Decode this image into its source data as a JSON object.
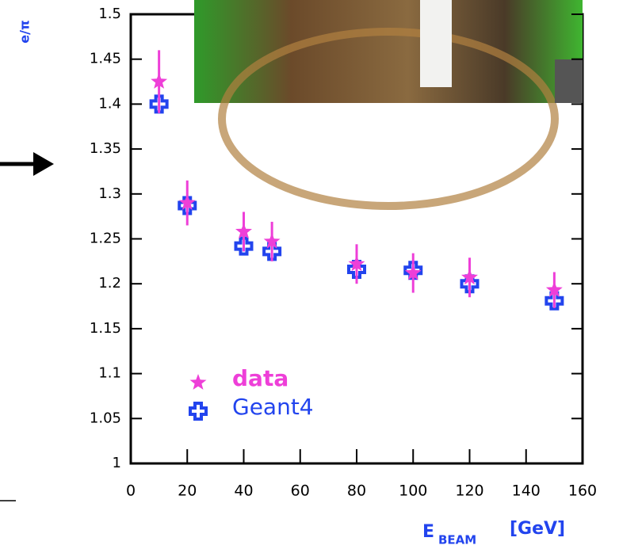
{
  "chart_data": {
    "type": "scatter",
    "y_label": "e/π",
    "x_label": "E",
    "x_label_sub": "BEAM",
    "x_label_unit": "[GeV]",
    "x": [
      10,
      20,
      40,
      50,
      80,
      100,
      120,
      150
    ],
    "series": [
      {
        "name": "data",
        "color": "#ee3fd8",
        "marker": "star",
        "values": [
          1.425,
          1.29,
          1.258,
          1.247,
          1.222,
          1.212,
          1.207,
          1.193
        ],
        "errors": [
          0.035,
          0.025,
          0.022,
          0.022,
          0.022,
          0.022,
          0.022,
          0.02
        ]
      },
      {
        "name": "Geant4",
        "color": "#2244ee",
        "marker": "cross",
        "values": [
          1.4,
          1.287,
          1.242,
          1.236,
          1.216,
          1.215,
          1.2,
          1.181
        ]
      }
    ],
    "xlim": [
      0,
      160
    ],
    "xticks": [
      0,
      20,
      40,
      60,
      80,
      100,
      120,
      140,
      160
    ],
    "ylim": [
      1,
      1.5
    ],
    "yticks": [
      1,
      1.05,
      1.1,
      1.15,
      1.2,
      1.25,
      1.3,
      1.35,
      1.4,
      1.45,
      1.5
    ]
  }
}
